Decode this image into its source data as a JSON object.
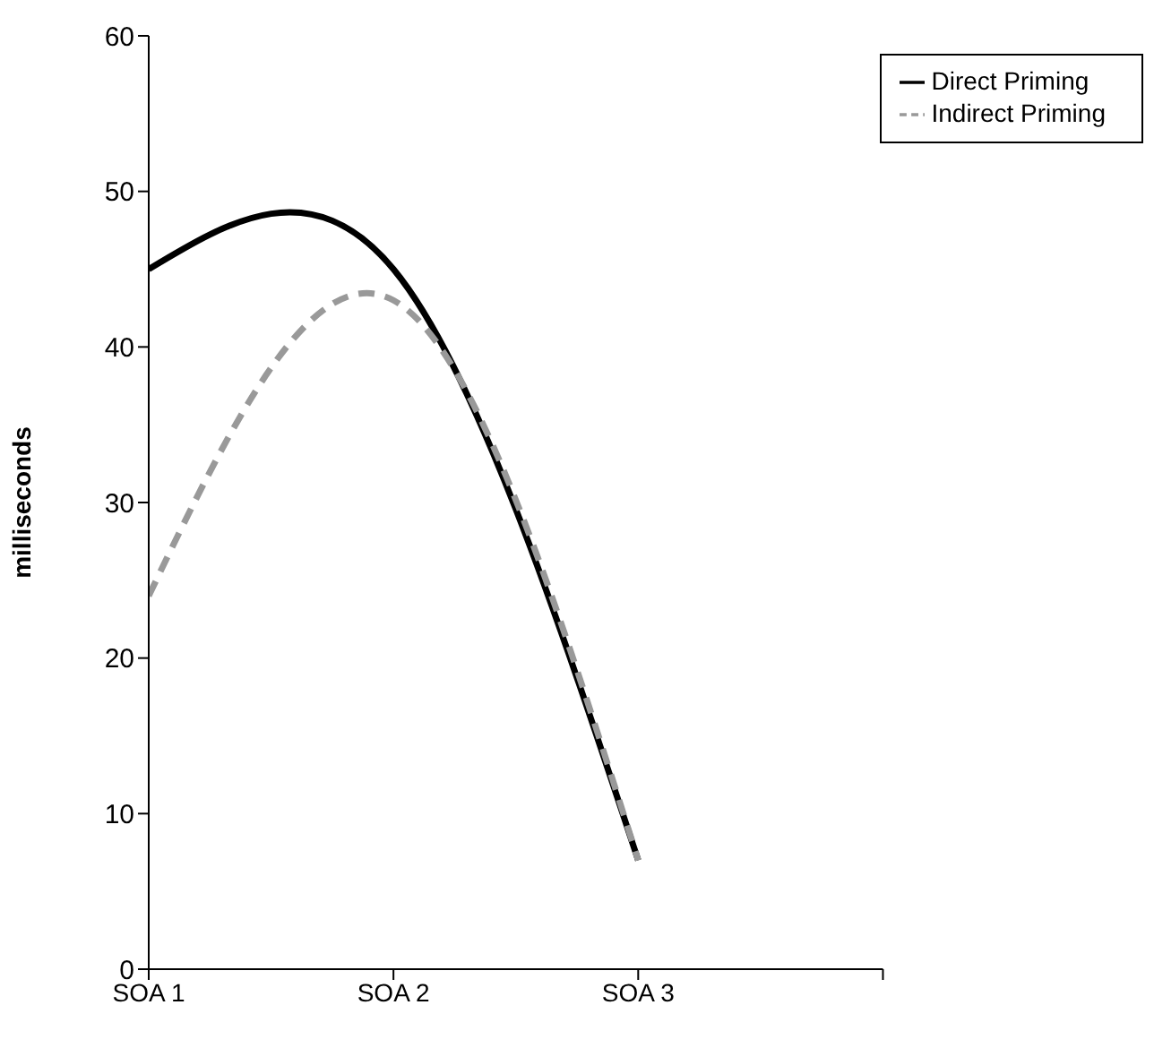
{
  "chart_data": {
    "type": "line",
    "ylabel": "milliseconds",
    "categories": [
      "SOA 1",
      "SOA 2",
      "SOA 3",
      null
    ],
    "series": [
      {
        "name": "Direct Priming",
        "color": "#000000",
        "values": [
          45,
          45,
          7,
          null
        ],
        "line_style": "solid"
      },
      {
        "name": "Indirect Priming",
        "color": "#999999",
        "values": [
          24,
          43,
          7,
          null
        ],
        "line_style": "dashed"
      }
    ],
    "ylim": [
      0,
      60
    ],
    "yticks": [
      0,
      10,
      20,
      30,
      40,
      50,
      60
    ],
    "grid": false,
    "legend": "top right",
    "marker": "none"
  }
}
